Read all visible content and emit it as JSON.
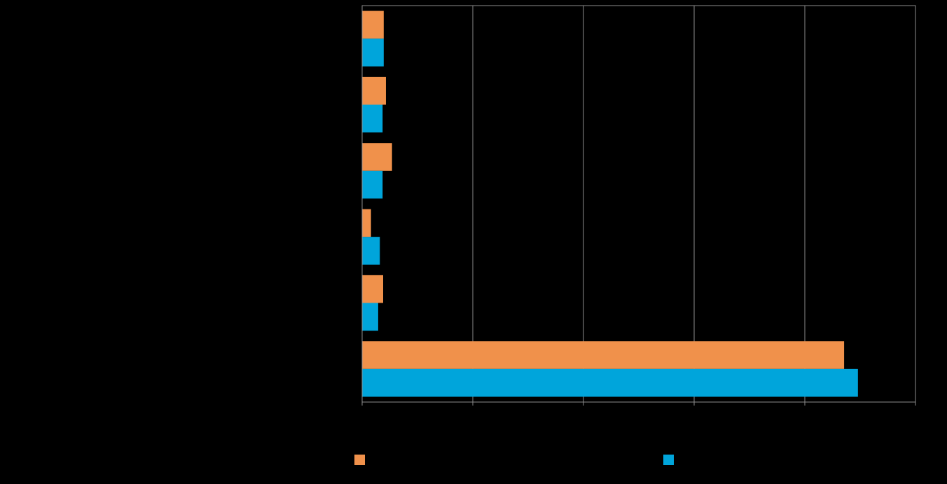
{
  "chart_data": {
    "type": "hbar",
    "categories": [
      null,
      null,
      null,
      null,
      null,
      null
    ],
    "series": [
      {
        "color": "#f0914b",
        "values": [
          3.9,
          4.3,
          5.4,
          1.6,
          3.8,
          87.1
        ]
      },
      {
        "color": "#00a5db",
        "values": [
          3.9,
          3.7,
          3.7,
          3.2,
          2.9,
          89.6
        ]
      }
    ],
    "xlim": [
      0,
      100
    ],
    "xticks": [
      0,
      20,
      40,
      60,
      80,
      100
    ],
    "grid": true,
    "legend": "bottom"
  }
}
